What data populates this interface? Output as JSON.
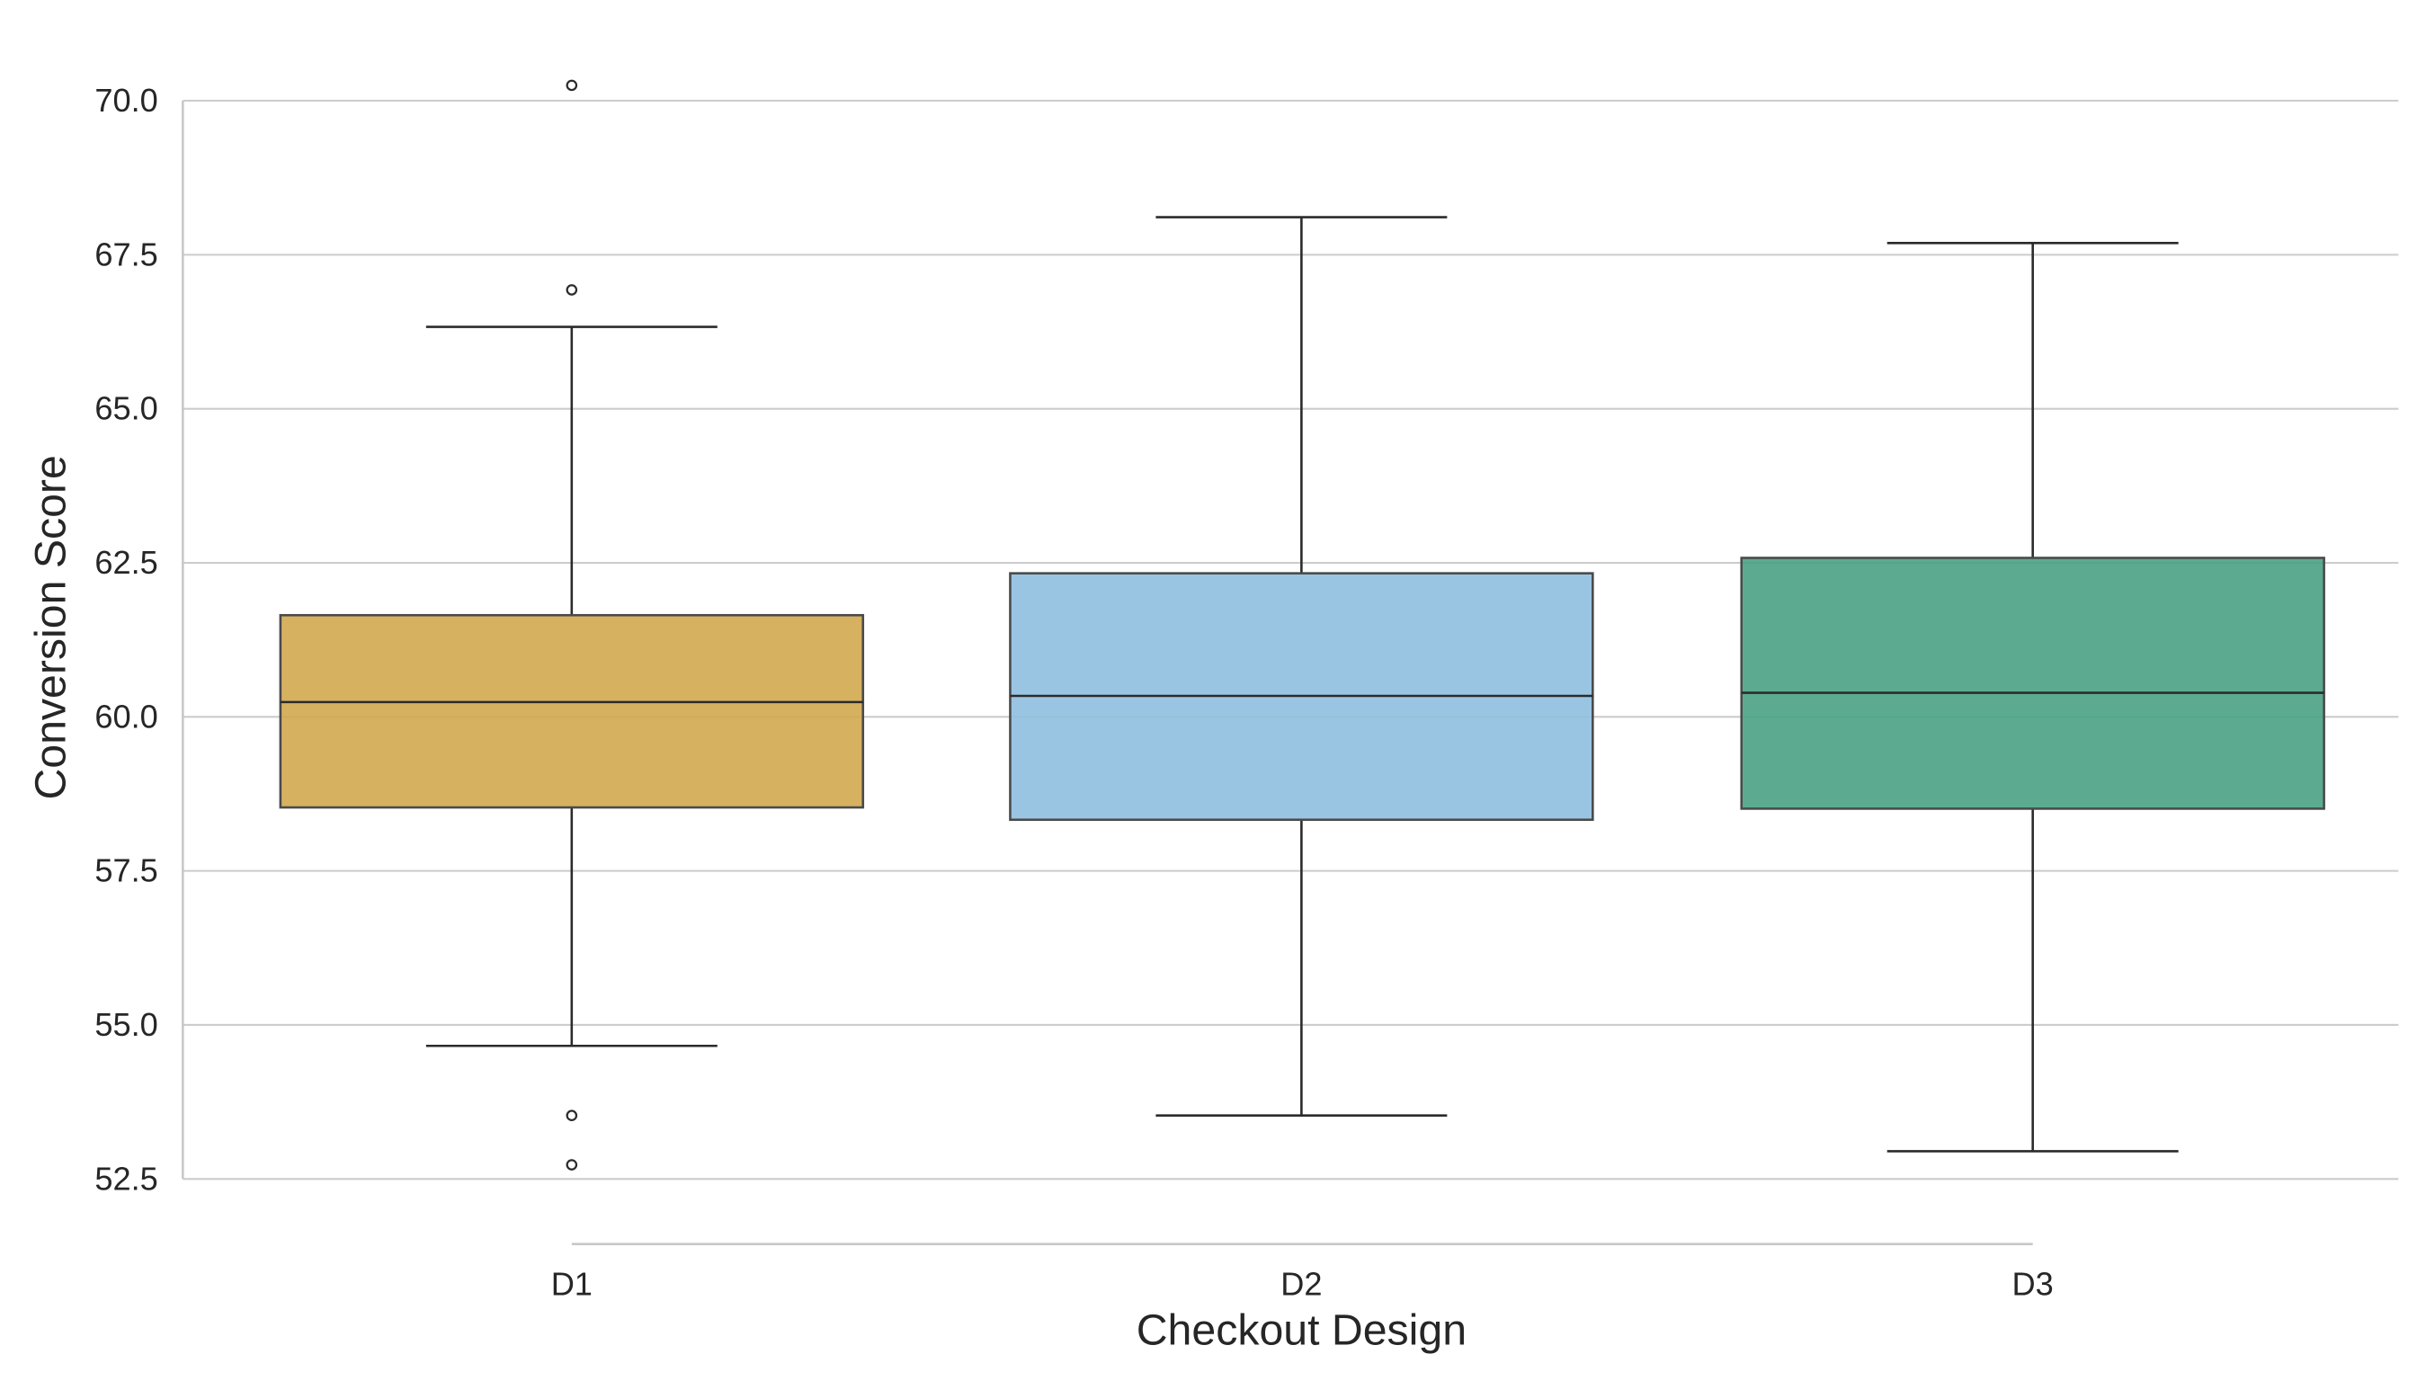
{
  "chart_data": {
    "type": "box",
    "title": "",
    "xlabel": "Checkout Design",
    "ylabel": "Conversion Score",
    "ylim": [
      52.5,
      70.0
    ],
    "yticks": [
      "52.5",
      "55.0",
      "57.5",
      "60.0",
      "62.5",
      "65.0",
      "67.5",
      "70.0"
    ],
    "grid": "horizontal",
    "categories": [
      "D1",
      "D2",
      "D3"
    ],
    "series": [
      {
        "name": "D1",
        "color": "#d1a94f",
        "whisker_low": 54.66,
        "q1": 58.53,
        "median": 60.24,
        "q3": 61.65,
        "whisker_high": 66.33,
        "outliers": [
          70.25,
          66.93,
          53.53,
          52.73
        ]
      },
      {
        "name": "D2",
        "color": "#8fbfdf",
        "whisker_low": 53.53,
        "q1": 58.33,
        "median": 60.34,
        "q3": 62.33,
        "whisker_high": 68.11,
        "outliers": []
      },
      {
        "name": "D3",
        "color": "#4aa285",
        "whisker_low": 52.95,
        "q1": 58.51,
        "median": 60.39,
        "q3": 62.58,
        "whisker_high": 67.69,
        "outliers": []
      }
    ]
  }
}
